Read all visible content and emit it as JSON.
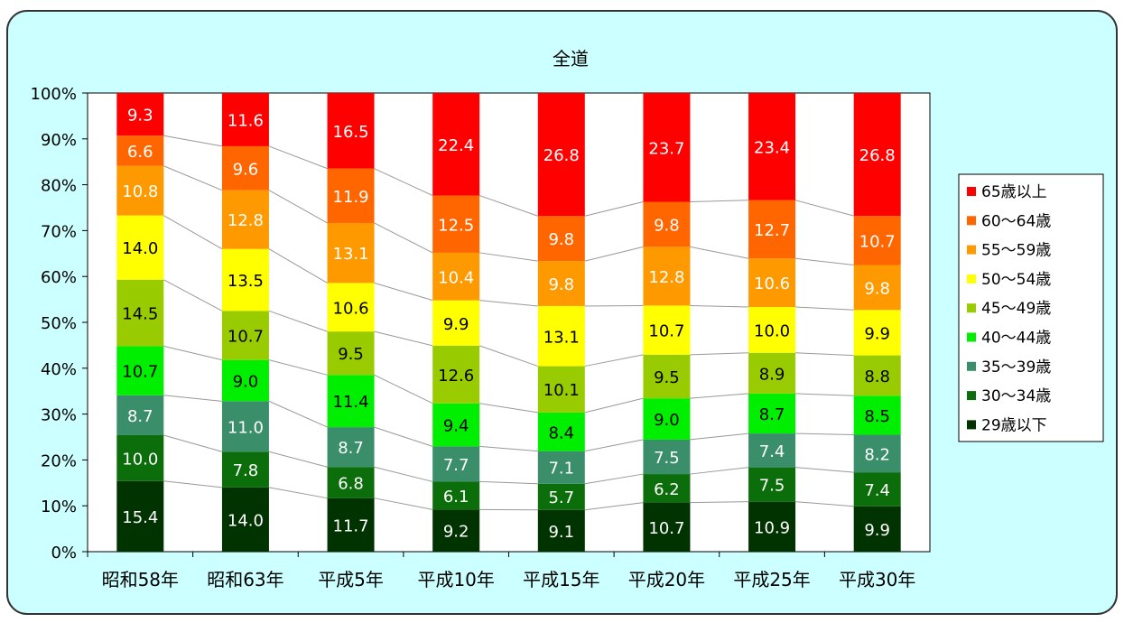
{
  "chart_data": {
    "type": "bar",
    "stacked": true,
    "percent_stacked": true,
    "title": "全道",
    "categories": [
      "昭和58年",
      "昭和63年",
      "平成5年",
      "平成10年",
      "平成15年",
      "平成20年",
      "平成25年",
      "平成30年"
    ],
    "y_ticks": [
      "0%",
      "10%",
      "20%",
      "30%",
      "40%",
      "50%",
      "60%",
      "70%",
      "80%",
      "90%",
      "100%"
    ],
    "ylim": [
      0,
      100
    ],
    "legend_position": "right",
    "series": [
      {
        "name": "29歳以下",
        "color": "#003300",
        "label_color": "#ffffff",
        "values": [
          15.4,
          14.0,
          11.7,
          9.2,
          9.1,
          10.7,
          10.9,
          9.9
        ]
      },
      {
        "name": "30～34歳",
        "color": "#0b6e0b",
        "label_color": "#ffffff",
        "values": [
          10.0,
          7.8,
          6.8,
          6.1,
          5.7,
          6.2,
          7.5,
          7.4
        ]
      },
      {
        "name": "35～39歳",
        "color": "#3a8f6a",
        "label_color": "#ffffff",
        "values": [
          8.7,
          11.0,
          8.7,
          7.7,
          7.1,
          7.5,
          7.4,
          8.2
        ]
      },
      {
        "name": "40～44歳",
        "color": "#00ee00",
        "label_color": "#000000",
        "values": [
          10.7,
          9.0,
          11.4,
          9.4,
          8.4,
          9.0,
          8.7,
          8.5
        ]
      },
      {
        "name": "45～49歳",
        "color": "#99cc00",
        "label_color": "#000000",
        "values": [
          14.5,
          10.7,
          9.5,
          12.6,
          10.1,
          9.5,
          8.9,
          8.8
        ]
      },
      {
        "name": "50～54歳",
        "color": "#ffff00",
        "label_color": "#000000",
        "values": [
          14.0,
          13.5,
          10.6,
          9.9,
          13.1,
          10.7,
          10.0,
          9.9
        ]
      },
      {
        "name": "55～59歳",
        "color": "#ff9900",
        "label_color": "#ffffff",
        "values": [
          10.8,
          12.8,
          13.1,
          10.4,
          9.8,
          12.8,
          10.6,
          9.8
        ]
      },
      {
        "name": "60～64歳",
        "color": "#ff6600",
        "label_color": "#ffffff",
        "values": [
          6.6,
          9.6,
          11.9,
          12.5,
          9.8,
          9.8,
          12.7,
          10.7
        ]
      },
      {
        "name": "65歳以上",
        "color": "#ff0000",
        "label_color": "#ffffff",
        "values": [
          9.3,
          11.6,
          16.5,
          22.4,
          26.8,
          23.7,
          23.4,
          26.8
        ]
      }
    ],
    "grid": false,
    "series_lines": true
  },
  "colors": {
    "background": "#ccffff",
    "plot_area": "#ffffff",
    "series_line": "#999999"
  }
}
